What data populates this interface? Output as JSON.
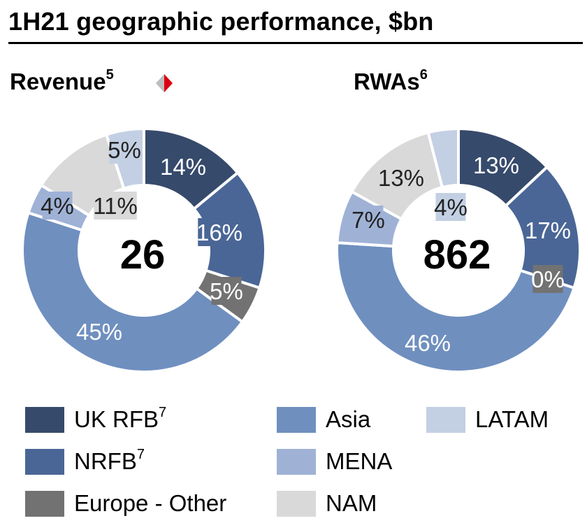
{
  "title": "1H21 geographic performance, $bn",
  "chart_data": [
    {
      "type": "pie",
      "variant": "donut",
      "title": "Revenue",
      "title_superscript": "5",
      "total": "26",
      "categories": [
        "UK RFB",
        "NRFB",
        "Europe - Other",
        "Asia",
        "MENA",
        "NAM",
        "LATAM"
      ],
      "values": [
        14,
        16,
        5,
        45,
        4,
        11,
        5
      ],
      "labels": [
        "14%",
        "16%",
        "5%",
        "45%",
        "4%",
        "11%",
        "5%"
      ]
    },
    {
      "type": "pie",
      "variant": "donut",
      "title": "RWAs",
      "title_superscript": "6",
      "total": "862",
      "categories": [
        "UK RFB",
        "NRFB",
        "Europe - Other",
        "Asia",
        "MENA",
        "NAM",
        "LATAM"
      ],
      "values": [
        13,
        17,
        0,
        46,
        7,
        13,
        4
      ],
      "labels": [
        "13%",
        "17%",
        "0%",
        "46%",
        "7%",
        "13%",
        "4%"
      ]
    }
  ],
  "legend": [
    {
      "label": "UK RFB",
      "sup": "7",
      "color": "#364a6b"
    },
    {
      "label": "NRFB",
      "sup": "7",
      "color": "#4a6696"
    },
    {
      "label": "Europe - Other",
      "sup": "",
      "color": "#727272"
    },
    {
      "label": "Asia",
      "sup": "",
      "color": "#6f8fbf"
    },
    {
      "label": "MENA",
      "sup": "",
      "color": "#9fb2d6"
    },
    {
      "label": "NAM",
      "sup": "",
      "color": "#d9d9d9"
    },
    {
      "label": "LATAM",
      "sup": "",
      "color": "#c3cfe3"
    }
  ],
  "colors": {
    "uk_rfb": "#364a6b",
    "nrfb": "#4a6696",
    "europe_other": "#727272",
    "asia": "#6f8fbf",
    "mena": "#9fb2d6",
    "nam": "#d9d9d9",
    "latam": "#c3cfe3",
    "accent_red": "#db0011"
  }
}
